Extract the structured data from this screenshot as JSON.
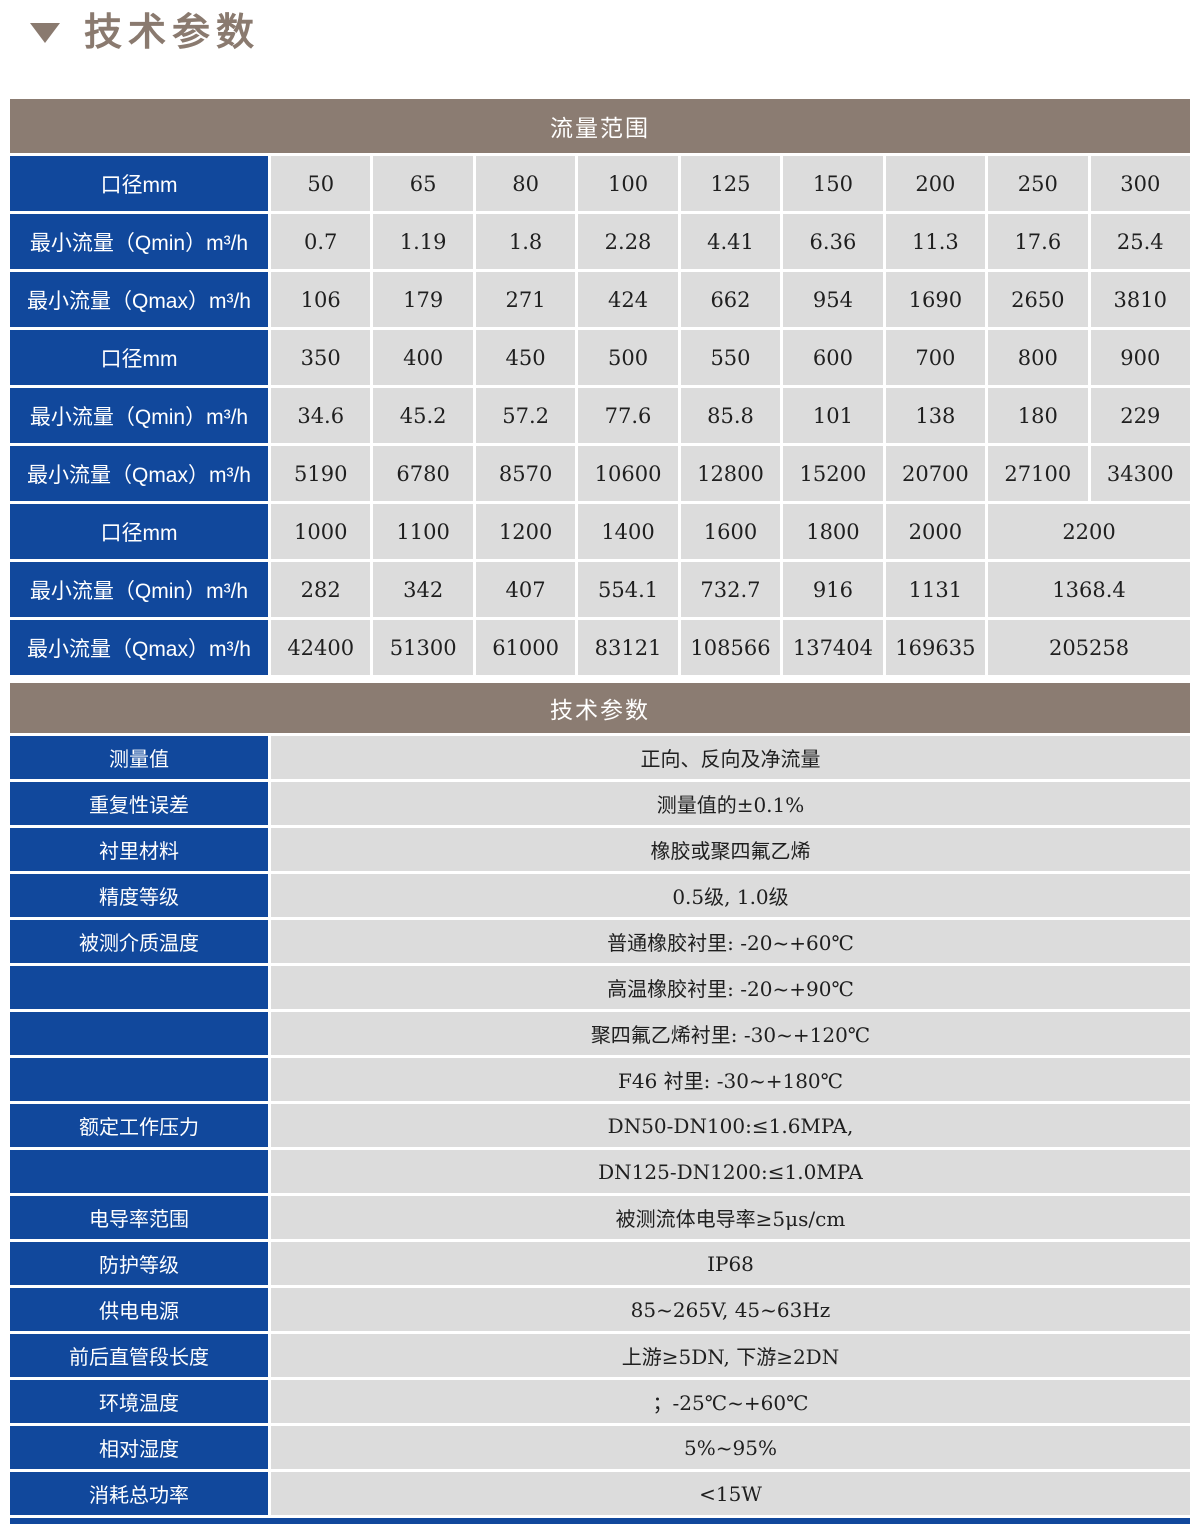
{
  "colors": {
    "blue": "#11489c",
    "brown": "#8b7c72",
    "cell": "#dcdcdc",
    "title": "#8a7a6f"
  },
  "page_title": "技术参数",
  "flow_table": {
    "header": "流量范围",
    "rows": [
      {
        "label": "口径mm",
        "values": [
          "50",
          "65",
          "80",
          "100",
          "125",
          "150",
          "200",
          "250",
          "300"
        ]
      },
      {
        "label": "最小流量（Qmin）m³/h",
        "values": [
          "0.7",
          "1.19",
          "1.8",
          "2.28",
          "4.41",
          "6.36",
          "11.3",
          "17.6",
          "25.4"
        ]
      },
      {
        "label": "最小流量（Qmax）m³/h",
        "values": [
          "106",
          "179",
          "271",
          "424",
          "662",
          "954",
          "1690",
          "2650",
          "3810"
        ]
      },
      {
        "label": "口径mm",
        "values": [
          "350",
          "400",
          "450",
          "500",
          "550",
          "600",
          "700",
          "800",
          "900"
        ]
      },
      {
        "label": "最小流量（Qmin）m³/h",
        "values": [
          "34.6",
          "45.2",
          "57.2",
          "77.6",
          "85.8",
          "101",
          "138",
          "180",
          "229"
        ]
      },
      {
        "label": "最小流量（Qmax）m³/h",
        "values": [
          "5190",
          "6780",
          "8570",
          "10600",
          "12800",
          "15200",
          "20700",
          "27100",
          "34300"
        ]
      },
      {
        "label": "口径mm",
        "values": [
          "1000",
          "1100",
          "1200",
          "1400",
          "1600",
          "1800",
          "2000",
          "2200"
        ]
      },
      {
        "label": "最小流量（Qmin）m³/h",
        "values": [
          "282",
          "342",
          "407",
          "554.1",
          "732.7",
          "916",
          "1131",
          "1368.4"
        ]
      },
      {
        "label": "最小流量（Qmax）m³/h",
        "values": [
          "42400",
          "51300",
          "61000",
          "83121",
          "108566",
          "137404",
          "169635",
          "205258"
        ]
      }
    ]
  },
  "tech_table": {
    "header": "技术参数",
    "rows": [
      {
        "label": "测量值",
        "value": "正向、反向及净流量"
      },
      {
        "label": "重复性误差",
        "value": "测量值的±0.1%"
      },
      {
        "label": "衬里材料",
        "value": "橡胶或聚四氟乙烯"
      },
      {
        "label": "精度等级",
        "value": "0.5级, 1.0级"
      },
      {
        "label": "被测介质温度",
        "value": "普通橡胶衬里: -20~+60℃"
      },
      {
        "label": "",
        "value": "高温橡胶衬里: -20~+90℃"
      },
      {
        "label": "",
        "value": "聚四氟乙烯衬里: -30~+120℃"
      },
      {
        "label": "",
        "value": "F46 衬里: -30~+180℃"
      },
      {
        "label": "额定工作压力",
        "value": "DN50-DN100:≤1.6MPA,"
      },
      {
        "label": "",
        "value": "DN125-DN1200:≤1.0MPA"
      },
      {
        "label": "电导率范围",
        "value": "被测流体电导率≥5μs/cm"
      },
      {
        "label": "防护等级",
        "value": "IP68"
      },
      {
        "label": "供电电源",
        "value": "85~265V, 45~63Hz"
      },
      {
        "label": "前后直管段长度",
        "value": "上游≥5DN, 下游≥2DN"
      },
      {
        "label": "环境温度",
        "value": "；-25℃~+60℃"
      },
      {
        "label": "相对湿度",
        "value": "5%~95%"
      },
      {
        "label": "消耗总功率",
        "value": "<15W"
      }
    ]
  }
}
